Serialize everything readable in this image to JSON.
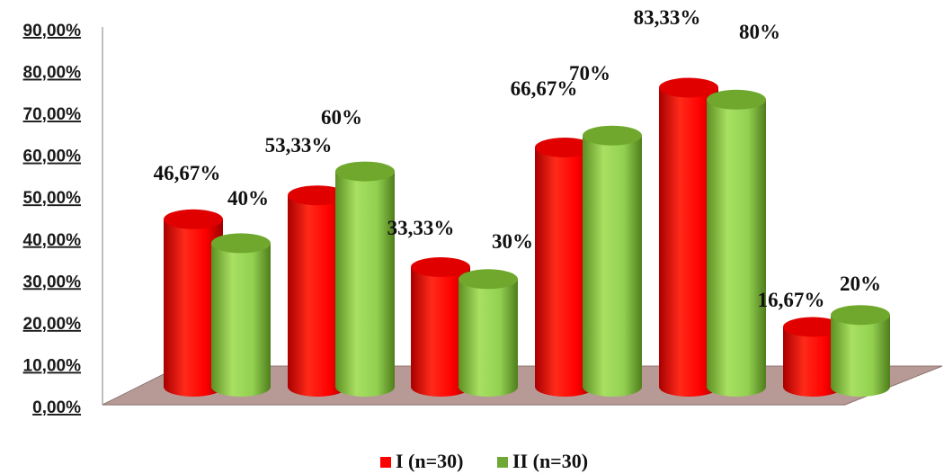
{
  "chart_data": {
    "type": "bar",
    "categories": [
      "",
      "",
      "",
      "",
      "",
      ""
    ],
    "series": [
      {
        "name": "I (n=30)",
        "color": "#ff0000",
        "values": [
          46.67,
          53.33,
          33.33,
          66.67,
          83.33,
          16.67
        ],
        "labels": [
          "46,67%",
          "53,33%",
          "33,33%",
          "66,67%",
          "83,33%",
          "16,67%"
        ]
      },
      {
        "name": "II (n=30)",
        "color": "#92d050",
        "values": [
          40,
          60,
          30,
          70,
          80,
          20
        ],
        "labels": [
          "40%",
          "60%",
          "30%",
          "70%",
          "80%",
          "20%"
        ]
      }
    ],
    "y_ticks": [
      "0,00%",
      "10,00%",
      "20,00%",
      "30,00%",
      "40,00%",
      "50,00%",
      "60,00%",
      "70,00%",
      "80,00%",
      "90,00%"
    ],
    "ylim": [
      0,
      90
    ],
    "grid": false,
    "legend": "bottom",
    "title": "",
    "xlabel": "",
    "ylabel": "",
    "style": "3d-cylinder"
  }
}
